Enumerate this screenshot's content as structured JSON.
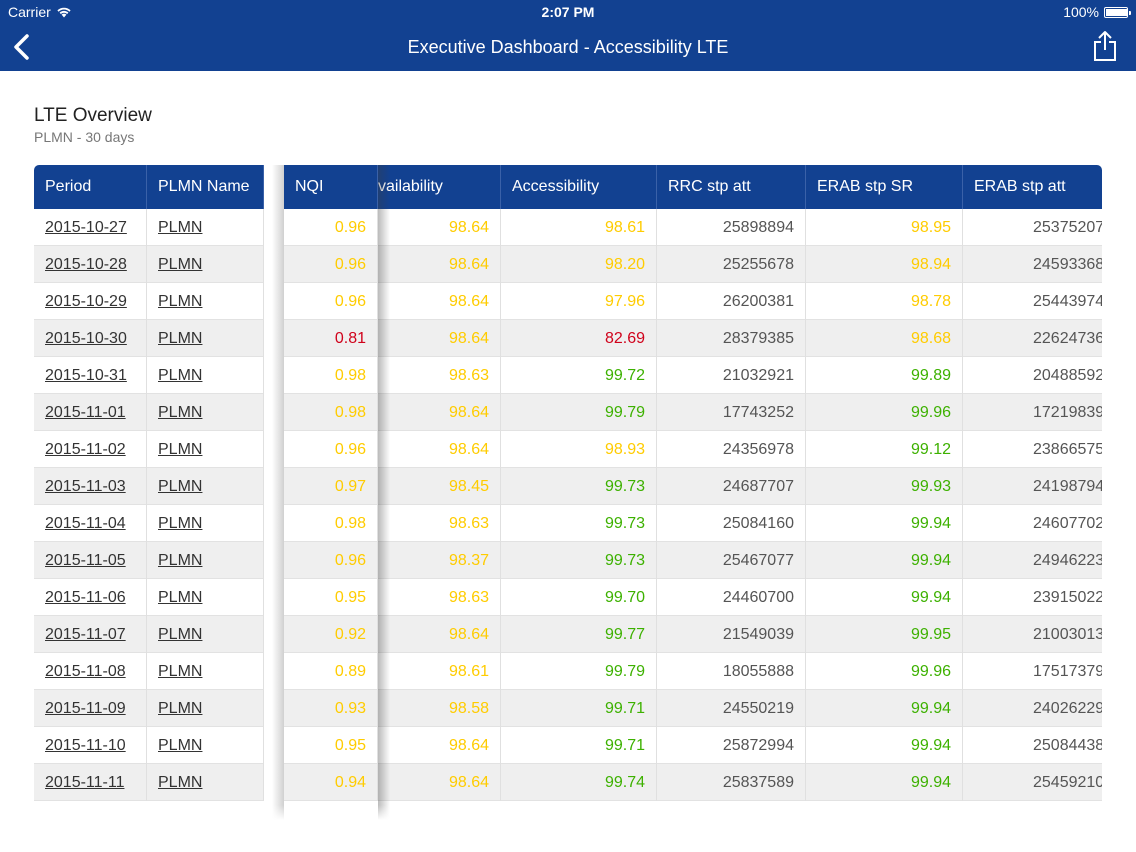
{
  "status_bar": {
    "carrier": "Carrier",
    "time": "2:07 PM",
    "battery": "100%",
    "battery_level": 1.0
  },
  "nav": {
    "title": "Executive Dashboard - Accessibility LTE",
    "back_icon": "chevron-left-icon",
    "share_icon": "share-icon"
  },
  "section": {
    "title": "LTE Overview",
    "subtitle": "PLMN - 30 days"
  },
  "colors": {
    "header_bg": "#124191",
    "good": "#3db100",
    "warn": "#ffcc00",
    "bad": "#d0021b"
  },
  "table": {
    "headers": {
      "period": "Period",
      "plmn_name": "PLMN Name",
      "nqi": "NQI",
      "availability": "vailability",
      "accessibility": "Accessibility",
      "rrc_stp_att": "RRC stp att",
      "erab_stp_sr": "ERAB stp SR",
      "erab_stp_att": "ERAB stp att"
    },
    "rows": [
      {
        "period": "2015-10-27",
        "plmn": "PLMN",
        "nqi": "0.96",
        "nqi_c": "yellow",
        "avail": "98.64",
        "avail_c": "yellow",
        "acc": "98.61",
        "acc_c": "yellow",
        "rrc": "25898894",
        "erab_sr": "98.95",
        "erab_sr_c": "yellow",
        "erab_att": "25375207"
      },
      {
        "period": "2015-10-28",
        "plmn": "PLMN",
        "nqi": "0.96",
        "nqi_c": "yellow",
        "avail": "98.64",
        "avail_c": "yellow",
        "acc": "98.20",
        "acc_c": "yellow",
        "rrc": "25255678",
        "erab_sr": "98.94",
        "erab_sr_c": "yellow",
        "erab_att": "24593368"
      },
      {
        "period": "2015-10-29",
        "plmn": "PLMN",
        "nqi": "0.96",
        "nqi_c": "yellow",
        "avail": "98.64",
        "avail_c": "yellow",
        "acc": "97.96",
        "acc_c": "yellow",
        "rrc": "26200381",
        "erab_sr": "98.78",
        "erab_sr_c": "yellow",
        "erab_att": "25443974"
      },
      {
        "period": "2015-10-30",
        "plmn": "PLMN",
        "nqi": "0.81",
        "nqi_c": "red",
        "avail": "98.64",
        "avail_c": "yellow",
        "acc": "82.69",
        "acc_c": "red",
        "rrc": "28379385",
        "erab_sr": "98.68",
        "erab_sr_c": "yellow",
        "erab_att": "22624736"
      },
      {
        "period": "2015-10-31",
        "plmn": "PLMN",
        "nqi": "0.98",
        "nqi_c": "yellow",
        "avail": "98.63",
        "avail_c": "yellow",
        "acc": "99.72",
        "acc_c": "green",
        "rrc": "21032921",
        "erab_sr": "99.89",
        "erab_sr_c": "green",
        "erab_att": "20488592"
      },
      {
        "period": "2015-11-01",
        "plmn": "PLMN",
        "nqi": "0.98",
        "nqi_c": "yellow",
        "avail": "98.64",
        "avail_c": "yellow",
        "acc": "99.79",
        "acc_c": "green",
        "rrc": "17743252",
        "erab_sr": "99.96",
        "erab_sr_c": "green",
        "erab_att": "17219839"
      },
      {
        "period": "2015-11-02",
        "plmn": "PLMN",
        "nqi": "0.96",
        "nqi_c": "yellow",
        "avail": "98.64",
        "avail_c": "yellow",
        "acc": "98.93",
        "acc_c": "yellow",
        "rrc": "24356978",
        "erab_sr": "99.12",
        "erab_sr_c": "green",
        "erab_att": "23866575"
      },
      {
        "period": "2015-11-03",
        "plmn": "PLMN",
        "nqi": "0.97",
        "nqi_c": "yellow",
        "avail": "98.45",
        "avail_c": "yellow",
        "acc": "99.73",
        "acc_c": "green",
        "rrc": "24687707",
        "erab_sr": "99.93",
        "erab_sr_c": "green",
        "erab_att": "24198794"
      },
      {
        "period": "2015-11-04",
        "plmn": "PLMN",
        "nqi": "0.98",
        "nqi_c": "yellow",
        "avail": "98.63",
        "avail_c": "yellow",
        "acc": "99.73",
        "acc_c": "green",
        "rrc": "25084160",
        "erab_sr": "99.94",
        "erab_sr_c": "green",
        "erab_att": "24607702"
      },
      {
        "period": "2015-11-05",
        "plmn": "PLMN",
        "nqi": "0.96",
        "nqi_c": "yellow",
        "avail": "98.37",
        "avail_c": "yellow",
        "acc": "99.73",
        "acc_c": "green",
        "rrc": "25467077",
        "erab_sr": "99.94",
        "erab_sr_c": "green",
        "erab_att": "24946223"
      },
      {
        "period": "2015-11-06",
        "plmn": "PLMN",
        "nqi": "0.95",
        "nqi_c": "yellow",
        "avail": "98.63",
        "avail_c": "yellow",
        "acc": "99.70",
        "acc_c": "green",
        "rrc": "24460700",
        "erab_sr": "99.94",
        "erab_sr_c": "green",
        "erab_att": "23915022"
      },
      {
        "period": "2015-11-07",
        "plmn": "PLMN",
        "nqi": "0.92",
        "nqi_c": "yellow",
        "avail": "98.64",
        "avail_c": "yellow",
        "acc": "99.77",
        "acc_c": "green",
        "rrc": "21549039",
        "erab_sr": "99.95",
        "erab_sr_c": "green",
        "erab_att": "21003013"
      },
      {
        "period": "2015-11-08",
        "plmn": "PLMN",
        "nqi": "0.89",
        "nqi_c": "yellow",
        "avail": "98.61",
        "avail_c": "yellow",
        "acc": "99.79",
        "acc_c": "green",
        "rrc": "18055888",
        "erab_sr": "99.96",
        "erab_sr_c": "green",
        "erab_att": "17517379"
      },
      {
        "period": "2015-11-09",
        "plmn": "PLMN",
        "nqi": "0.93",
        "nqi_c": "yellow",
        "avail": "98.58",
        "avail_c": "yellow",
        "acc": "99.71",
        "acc_c": "green",
        "rrc": "24550219",
        "erab_sr": "99.94",
        "erab_sr_c": "green",
        "erab_att": "24026229"
      },
      {
        "period": "2015-11-10",
        "plmn": "PLMN",
        "nqi": "0.95",
        "nqi_c": "yellow",
        "avail": "98.64",
        "avail_c": "yellow",
        "acc": "99.71",
        "acc_c": "green",
        "rrc": "25872994",
        "erab_sr": "99.94",
        "erab_sr_c": "green",
        "erab_att": "25084438"
      },
      {
        "period": "2015-11-11",
        "plmn": "PLMN",
        "nqi": "0.94",
        "nqi_c": "yellow",
        "avail": "98.64",
        "avail_c": "yellow",
        "acc": "99.74",
        "acc_c": "green",
        "rrc": "25837589",
        "erab_sr": "99.94",
        "erab_sr_c": "green",
        "erab_att": "25459210"
      }
    ]
  }
}
